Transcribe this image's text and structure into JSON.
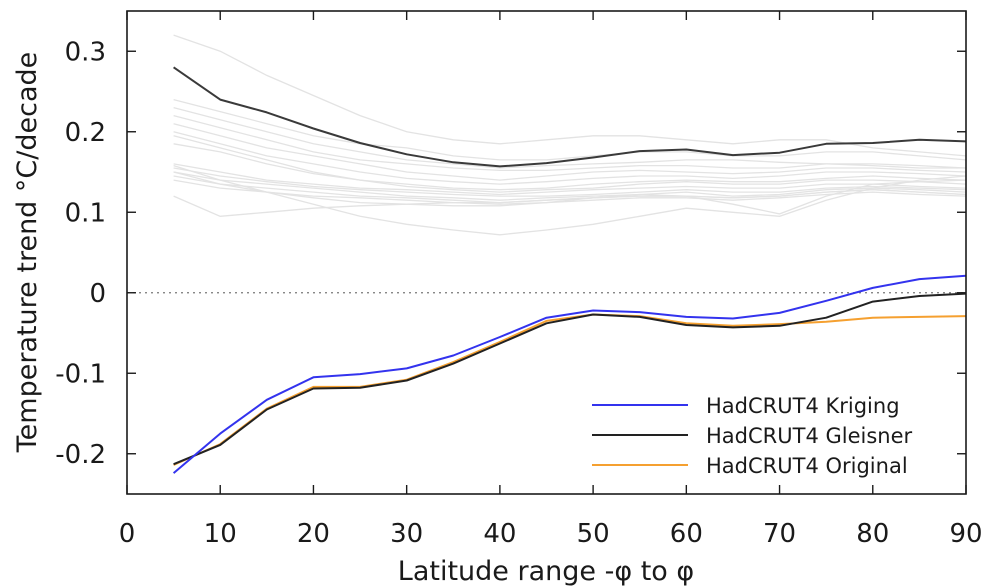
{
  "chart_data": {
    "type": "line",
    "title": "",
    "xlabel": "Latitude range -φ to φ",
    "ylabel": "Temperature trend °C/decade",
    "xlim": [
      0,
      90
    ],
    "ylim": [
      -0.25,
      0.35
    ],
    "xticks": [
      0,
      10,
      20,
      30,
      40,
      50,
      60,
      70,
      80,
      90
    ],
    "xtick_labels": [
      "0",
      "10",
      "20",
      "30",
      "40",
      "50",
      "60",
      "70",
      "80",
      "90"
    ],
    "yticks": [
      -0.2,
      -0.1,
      0,
      0.1,
      0.2,
      0.3
    ],
    "ytick_labels": [
      "-0.2",
      "-0.1",
      "0",
      "0.1",
      "0.2",
      "0.3"
    ],
    "grid": false,
    "zero_line": "dotted",
    "legend_position": "bottom-right",
    "x": [
      5,
      10,
      15,
      20,
      25,
      30,
      35,
      40,
      45,
      50,
      55,
      60,
      65,
      70,
      75,
      80,
      85,
      90
    ],
    "series": [
      {
        "name": "HadCRUT4 Kriging",
        "color": "#3333ee",
        "values": [
          -0.224,
          -0.175,
          -0.133,
          -0.105,
          -0.101,
          -0.094,
          -0.078,
          -0.055,
          -0.031,
          -0.022,
          -0.024,
          -0.03,
          -0.032,
          -0.025,
          -0.01,
          0.006,
          0.017,
          0.021
        ]
      },
      {
        "name": "HadCRUT4 Gleisner",
        "color": "#222222",
        "values": [
          -0.213,
          -0.189,
          -0.145,
          -0.119,
          -0.118,
          -0.109,
          -0.088,
          -0.063,
          -0.038,
          -0.027,
          -0.03,
          -0.04,
          -0.043,
          -0.041,
          -0.031,
          -0.011,
          -0.004,
          -0.001
        ]
      },
      {
        "name": "HadCRUT4 Original",
        "color": "#f5a030",
        "values": [
          -0.214,
          -0.188,
          -0.144,
          -0.117,
          -0.117,
          -0.108,
          -0.086,
          -0.061,
          -0.035,
          -0.027,
          -0.029,
          -0.038,
          -0.041,
          -0.039,
          -0.036,
          -0.031,
          -0.03,
          -0.029
        ]
      },
      {
        "name": "",
        "color": "#3a3a3a",
        "values": [
          0.28,
          0.24,
          0.224,
          0.204,
          0.186,
          0.172,
          0.162,
          0.157,
          0.161,
          0.168,
          0.176,
          0.178,
          0.171,
          0.174,
          0.185,
          0.186,
          0.19,
          0.188
        ]
      }
    ],
    "background_series_color": "#e3e3e3",
    "background_series": [
      [
        0.32,
        0.3,
        0.27,
        0.245,
        0.22,
        0.2,
        0.19,
        0.185,
        0.19,
        0.195,
        0.195,
        0.19,
        0.185,
        0.19,
        0.19,
        0.18,
        0.175,
        0.17
      ],
      [
        0.24,
        0.225,
        0.21,
        0.195,
        0.185,
        0.18,
        0.17,
        0.165,
        0.165,
        0.17,
        0.175,
        0.175,
        0.17,
        0.17,
        0.175,
        0.175,
        0.17,
        0.165
      ],
      [
        0.23,
        0.215,
        0.2,
        0.185,
        0.175,
        0.165,
        0.16,
        0.155,
        0.158,
        0.16,
        0.162,
        0.165,
        0.165,
        0.162,
        0.16,
        0.158,
        0.155,
        0.155
      ],
      [
        0.22,
        0.205,
        0.19,
        0.175,
        0.165,
        0.16,
        0.155,
        0.152,
        0.152,
        0.155,
        0.158,
        0.158,
        0.155,
        0.155,
        0.16,
        0.16,
        0.158,
        0.155
      ],
      [
        0.21,
        0.195,
        0.18,
        0.17,
        0.16,
        0.15,
        0.145,
        0.14,
        0.145,
        0.15,
        0.152,
        0.15,
        0.148,
        0.15,
        0.155,
        0.155,
        0.152,
        0.15
      ],
      [
        0.2,
        0.185,
        0.17,
        0.16,
        0.15,
        0.142,
        0.138,
        0.135,
        0.138,
        0.142,
        0.145,
        0.145,
        0.142,
        0.145,
        0.15,
        0.15,
        0.148,
        0.145
      ],
      [
        0.195,
        0.18,
        0.165,
        0.15,
        0.14,
        0.135,
        0.13,
        0.128,
        0.13,
        0.135,
        0.138,
        0.14,
        0.138,
        0.138,
        0.142,
        0.145,
        0.142,
        0.14
      ],
      [
        0.185,
        0.175,
        0.16,
        0.148,
        0.14,
        0.132,
        0.128,
        0.125,
        0.128,
        0.13,
        0.135,
        0.138,
        0.135,
        0.135,
        0.14,
        0.14,
        0.138,
        0.135
      ],
      [
        0.16,
        0.15,
        0.14,
        0.135,
        0.13,
        0.128,
        0.125,
        0.122,
        0.125,
        0.128,
        0.13,
        0.132,
        0.13,
        0.13,
        0.135,
        0.135,
        0.132,
        0.13
      ],
      [
        0.155,
        0.145,
        0.138,
        0.132,
        0.128,
        0.125,
        0.122,
        0.12,
        0.12,
        0.122,
        0.125,
        0.128,
        0.125,
        0.125,
        0.13,
        0.132,
        0.13,
        0.128
      ],
      [
        0.15,
        0.14,
        0.135,
        0.13,
        0.125,
        0.12,
        0.118,
        0.115,
        0.118,
        0.12,
        0.122,
        0.125,
        0.12,
        0.122,
        0.128,
        0.13,
        0.128,
        0.125
      ],
      [
        0.145,
        0.135,
        0.13,
        0.125,
        0.12,
        0.118,
        0.115,
        0.112,
        0.115,
        0.118,
        0.12,
        0.12,
        0.118,
        0.12,
        0.125,
        0.128,
        0.125,
        0.122
      ],
      [
        0.14,
        0.13,
        0.125,
        0.12,
        0.118,
        0.115,
        0.112,
        0.11,
        0.112,
        0.115,
        0.118,
        0.118,
        0.115,
        0.118,
        0.122,
        0.125,
        0.122,
        0.12
      ],
      [
        0.12,
        0.095,
        0.1,
        0.105,
        0.108,
        0.11,
        0.112,
        0.112,
        0.115,
        0.118,
        0.12,
        0.12,
        0.118,
        0.12,
        0.125,
        0.128,
        0.125,
        0.122
      ],
      [
        0.158,
        0.14,
        0.125,
        0.11,
        0.095,
        0.085,
        0.078,
        0.072,
        0.078,
        0.085,
        0.095,
        0.105,
        0.1,
        0.095,
        0.115,
        0.13,
        0.14,
        0.145
      ],
      [
        0.15,
        0.135,
        0.125,
        0.118,
        0.112,
        0.11,
        0.108,
        0.108,
        0.112,
        0.118,
        0.122,
        0.12,
        0.11,
        0.098,
        0.12,
        0.135,
        0.138,
        0.14
      ]
    ]
  }
}
